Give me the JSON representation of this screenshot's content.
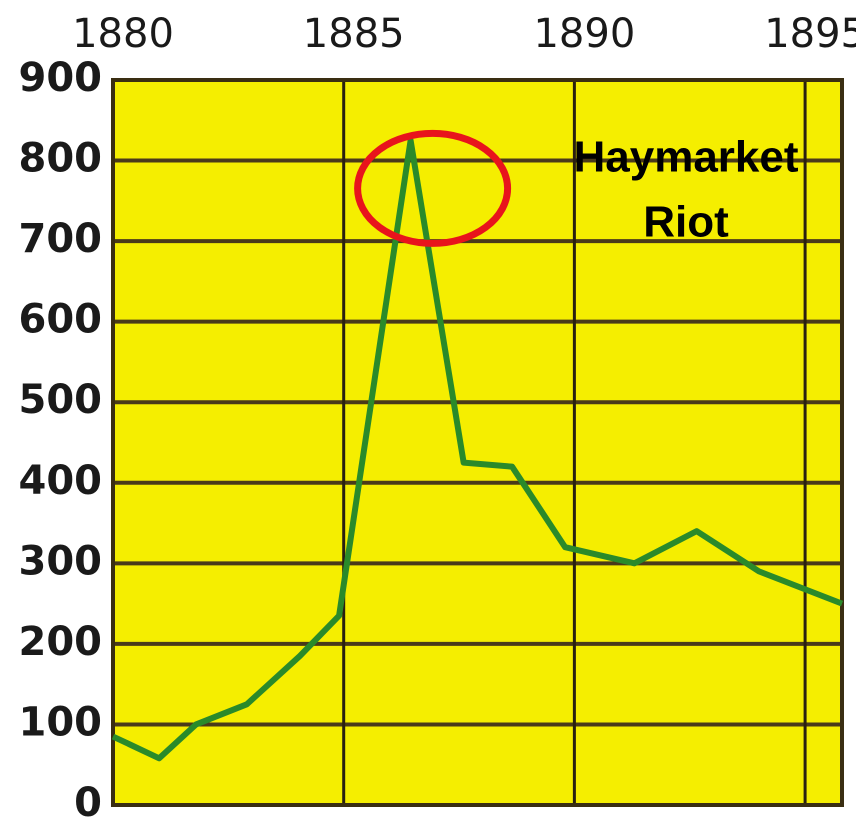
{
  "chart_data": {
    "type": "line",
    "x": [
      1880,
      1881,
      1881.8,
      1882.9,
      1884.05,
      1884.9,
      1886.45,
      1887.6,
      1888.65,
      1889.8,
      1891.3,
      1892.65,
      1894,
      1895.8
    ],
    "series": [
      {
        "color": "#2a8a2a",
        "values": [
          85,
          58,
          100,
          125,
          185,
          235,
          825,
          425,
          420,
          320,
          300,
          340,
          290,
          250
        ]
      }
    ],
    "xlim": [
      1880,
      1895.8
    ],
    "xticks": [
      1880,
      1885,
      1890,
      1895
    ],
    "ylim": [
      0,
      900
    ],
    "yticks": [
      0,
      100,
      200,
      300,
      400,
      500,
      600,
      700,
      800,
      900
    ],
    "grid": true,
    "background": "#f5ee00",
    "annotation": {
      "lines": [
        "Haymarket",
        "Riot"
      ],
      "x": 1886.45,
      "y": 825,
      "color": "#e8141c"
    }
  }
}
